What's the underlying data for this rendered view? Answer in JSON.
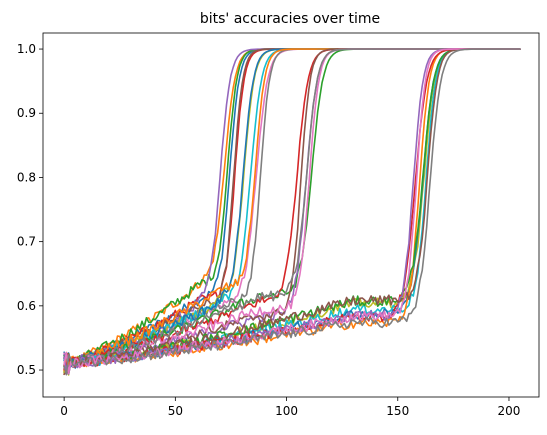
{
  "chart_data": {
    "type": "line",
    "title": "bits' accuracies over time",
    "xlabel": "",
    "ylabel": "",
    "xlim": [
      -9.5,
      213.5
    ],
    "ylim": [
      0.458,
      1.025
    ],
    "x_ticks": [
      0,
      50,
      100,
      150,
      200
    ],
    "y_ticks": [
      0.5,
      0.6,
      0.7,
      0.8,
      0.9,
      1.0
    ],
    "x_tick_labels": [
      "0",
      "50",
      "100",
      "150",
      "200"
    ],
    "y_tick_labels": [
      "0.5",
      "0.6",
      "0.7",
      "0.8",
      "0.9",
      "1.0"
    ],
    "grid": false,
    "legend": "none",
    "x_range": [
      0,
      205
    ],
    "start_value": 0.51,
    "final_value": 1.0,
    "groups": [
      {
        "midpoint": 73,
        "series_count": 6,
        "plateau_value": 0.62,
        "plateau_reach": 62
      },
      {
        "midpoint": 85,
        "series_count": 6,
        "plateau_value": 0.61,
        "plateau_reach": 72
      },
      {
        "midpoint": 108,
        "series_count": 6,
        "plateau_value": 0.6,
        "plateau_reach": 88
      },
      {
        "midpoint": 160,
        "series_count": 10,
        "plateau_value": 0.59,
        "plateau_reach": 130
      }
    ],
    "colors": [
      "#1f77b4",
      "#ff7f0e",
      "#2ca02c",
      "#d62728",
      "#9467bd",
      "#8c564b",
      "#e377c2",
      "#7f7f7f",
      "#bcbd22",
      "#17becf"
    ]
  }
}
